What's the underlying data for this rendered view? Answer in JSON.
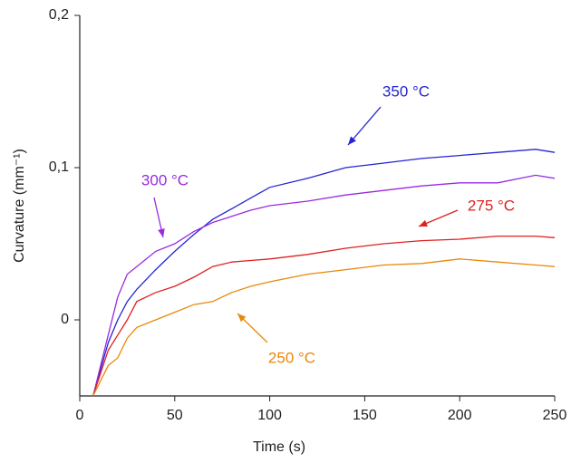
{
  "chart_data": {
    "type": "line",
    "x_label": "Time (s)",
    "y_label": "Curvature (mm⁻¹)",
    "x": [
      7,
      15,
      20,
      25,
      30,
      40,
      50,
      60,
      70,
      80,
      90,
      100,
      120,
      140,
      160,
      180,
      200,
      220,
      240,
      250
    ],
    "series": [
      {
        "name": "350 °C",
        "color": "#2424d4",
        "values": [
          -0.05,
          -0.015,
          0.0,
          0.012,
          0.02,
          0.033,
          0.045,
          0.056,
          0.066,
          0.073,
          0.08,
          0.087,
          0.093,
          0.1,
          0.103,
          0.106,
          0.108,
          0.11,
          0.112,
          0.11
        ]
      },
      {
        "name": "300 °C",
        "color": "#9a2be0",
        "values": [
          -0.05,
          -0.01,
          0.015,
          0.03,
          0.035,
          0.045,
          0.05,
          0.058,
          0.064,
          0.068,
          0.072,
          0.075,
          0.078,
          0.082,
          0.085,
          0.088,
          0.09,
          0.09,
          0.095,
          0.093
        ]
      },
      {
        "name": "275 °C",
        "color": "#e02020",
        "values": [
          -0.05,
          -0.02,
          -0.01,
          0.0,
          0.012,
          0.018,
          0.022,
          0.028,
          0.035,
          0.038,
          0.039,
          0.04,
          0.043,
          0.047,
          0.05,
          0.052,
          0.053,
          0.055,
          0.055,
          0.054
        ]
      },
      {
        "name": "250 °C",
        "color": "#e8880a",
        "values": [
          -0.05,
          -0.03,
          -0.025,
          -0.012,
          -0.005,
          0.0,
          0.005,
          0.01,
          0.012,
          0.018,
          0.022,
          0.025,
          0.03,
          0.033,
          0.036,
          0.037,
          0.04,
          0.038,
          0.036,
          0.035
        ]
      }
    ],
    "xlim": [
      0,
      250
    ],
    "xticks": [
      0,
      50,
      100,
      150,
      200,
      250
    ],
    "ylim": [
      -0.05,
      0.2
    ],
    "yticks": [
      {
        "value": 0,
        "label": "0"
      },
      {
        "value": 0.1,
        "label": "0,1"
      },
      {
        "value": 0.2,
        "label": "0,2"
      }
    ]
  }
}
